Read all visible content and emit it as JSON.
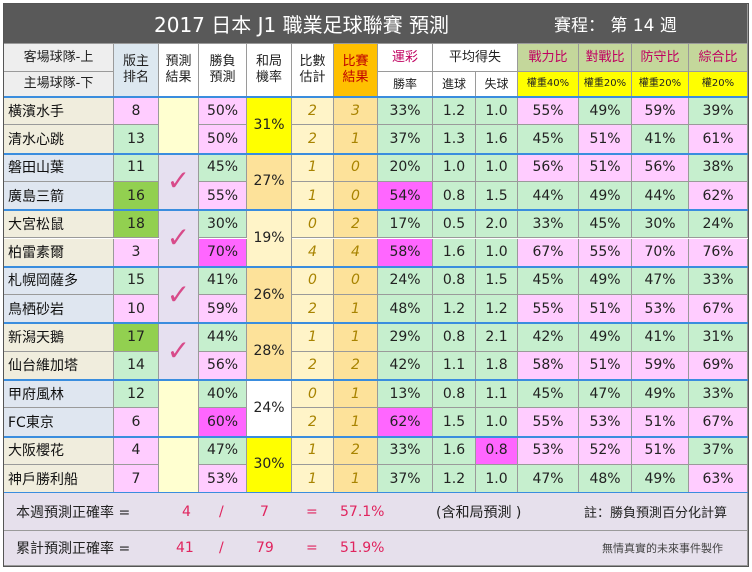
{
  "title": {
    "main": "2017 日本 J1 職業足球聯賽 預測",
    "schedule": "賽程： 第 14 週"
  },
  "headers": {
    "team_away": "客場球隊-上",
    "team_home": "主場球隊-下",
    "rank": [
      "版主",
      "排名"
    ],
    "pred_result": [
      "預測",
      "結果"
    ],
    "win_pred": [
      "勝負",
      "預測"
    ],
    "draw_rate": [
      "和局",
      "機率"
    ],
    "score_est": [
      "比數",
      "估計"
    ],
    "match_result": [
      "比賽",
      "結果"
    ],
    "lottery": "運彩",
    "win_rate": "勝率",
    "avg_goals": "平均得失",
    "scored": "進球",
    "conceded": "失球",
    "strength": "戰力比",
    "strength_weight": "權重40%",
    "matchup": "對戰比",
    "matchup_weight": "權重20%",
    "defense": "防守比",
    "defense_weight": "權重20%",
    "overall": "綜合比",
    "overall_weight": "權20%"
  },
  "matches": [
    {
      "correct": false,
      "draw": "31%",
      "draw_color": "#ffff00",
      "teams": [
        {
          "name": "橫濱水手",
          "rank": "8",
          "win": "50%",
          "score": "2",
          "result": "3",
          "lottery": "33%",
          "for": "1.2",
          "against": "1.0",
          "str": "55%",
          "mat": "49%",
          "def": "59%",
          "ovr": "39%"
        },
        {
          "name": "清水心跳",
          "rank": "13",
          "win": "50%",
          "score": "2",
          "result": "1",
          "lottery": "37%",
          "for": "1.3",
          "against": "1.6",
          "str": "45%",
          "mat": "51%",
          "def": "41%",
          "ovr": "61%"
        }
      ]
    },
    {
      "correct": true,
      "draw": "27%",
      "draw_color": "#fde29a",
      "teams": [
        {
          "name": "磐田山葉",
          "rank": "11",
          "win": "45%",
          "score": "1",
          "result": "0",
          "lottery": "20%",
          "for": "1.0",
          "against": "1.0",
          "str": "56%",
          "mat": "51%",
          "def": "56%",
          "ovr": "38%"
        },
        {
          "name": "廣島三箭",
          "rank": "16",
          "win": "55%",
          "score": "1",
          "result": "0",
          "lottery": "54%",
          "for": "0.8",
          "against": "1.5",
          "str": "44%",
          "mat": "49%",
          "def": "44%",
          "ovr": "62%"
        }
      ]
    },
    {
      "correct": true,
      "draw": "19%",
      "draw_color": "#fff4c8",
      "teams": [
        {
          "name": "大宮松鼠",
          "rank": "18",
          "win": "30%",
          "score": "0",
          "result": "2",
          "lottery": "17%",
          "for": "0.5",
          "against": "2.0",
          "str": "33%",
          "mat": "45%",
          "def": "30%",
          "ovr": "24%"
        },
        {
          "name": "柏雷素爾",
          "rank": "3",
          "win": "70%",
          "score": "4",
          "result": "4",
          "lottery": "58%",
          "for": "1.6",
          "against": "1.0",
          "str": "67%",
          "mat": "55%",
          "def": "70%",
          "ovr": "76%"
        }
      ]
    },
    {
      "correct": true,
      "draw": "26%",
      "draw_color": "#fde29a",
      "teams": [
        {
          "name": "札幌岡薩多",
          "rank": "15",
          "win": "41%",
          "score": "0",
          "result": "0",
          "lottery": "24%",
          "for": "0.8",
          "against": "1.5",
          "str": "45%",
          "mat": "49%",
          "def": "47%",
          "ovr": "33%"
        },
        {
          "name": "鳥栖砂岩",
          "rank": "10",
          "win": "59%",
          "score": "2",
          "result": "1",
          "lottery": "48%",
          "for": "1.2",
          "against": "1.2",
          "str": "55%",
          "mat": "51%",
          "def": "53%",
          "ovr": "67%"
        }
      ]
    },
    {
      "correct": true,
      "draw": "28%",
      "draw_color": "#fde29a",
      "teams": [
        {
          "name": "新潟天鵝",
          "rank": "17",
          "win": "44%",
          "score": "1",
          "result": "1",
          "lottery": "29%",
          "for": "0.8",
          "against": "2.1",
          "str": "42%",
          "mat": "49%",
          "def": "41%",
          "ovr": "31%"
        },
        {
          "name": "仙台維加塔",
          "rank": "14",
          "win": "56%",
          "score": "2",
          "result": "2",
          "lottery": "42%",
          "for": "1.1",
          "against": "1.8",
          "str": "58%",
          "mat": "51%",
          "def": "59%",
          "ovr": "69%"
        }
      ]
    },
    {
      "correct": false,
      "draw": "24%",
      "draw_color": "#ffffff",
      "teams": [
        {
          "name": "甲府風林",
          "rank": "12",
          "win": "40%",
          "score": "0",
          "result": "1",
          "lottery": "13%",
          "for": "0.8",
          "against": "1.1",
          "str": "45%",
          "mat": "47%",
          "def": "49%",
          "ovr": "33%"
        },
        {
          "name": "FC東京",
          "rank": "6",
          "win": "60%",
          "score": "2",
          "result": "1",
          "lottery": "62%",
          "for": "1.5",
          "against": "1.0",
          "str": "55%",
          "mat": "53%",
          "def": "51%",
          "ovr": "67%"
        }
      ]
    },
    {
      "correct": false,
      "draw": "30%",
      "draw_color": "#ffff00",
      "teams": [
        {
          "name": "大阪櫻花",
          "rank": "4",
          "win": "47%",
          "score": "1",
          "result": "2",
          "lottery": "33%",
          "for": "1.6",
          "against": "0.8",
          "str": "53%",
          "mat": "52%",
          "def": "51%",
          "ovr": "37%"
        },
        {
          "name": "神戶勝利船",
          "rank": "7",
          "win": "53%",
          "score": "1",
          "result": "1",
          "lottery": "37%",
          "for": "1.2",
          "against": "1.0",
          "str": "47%",
          "mat": "48%",
          "def": "49%",
          "ovr": "63%"
        }
      ]
    }
  ],
  "checkmark": "✓",
  "footer": {
    "week_label": "本週預測正確率 =",
    "week_correct": "4",
    "slash": "/",
    "week_total": "7",
    "equals": "=",
    "week_rate": "57.1%",
    "week_note": "(含和局預測 )",
    "note": "註：勝負預測百分化計算",
    "cum_label": "累計預測正確率 =",
    "cum_correct": "41",
    "cum_total": "79",
    "cum_rate": "51.9%",
    "credit": "無情真實的未來事件製作"
  }
}
